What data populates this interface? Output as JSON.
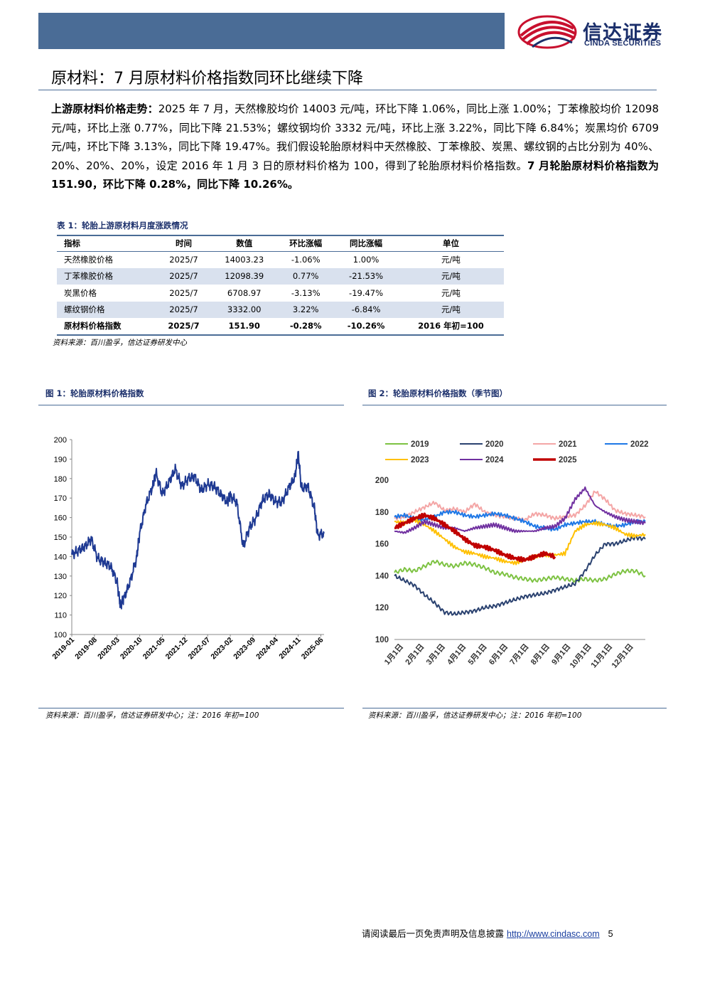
{
  "header": {
    "logo_cn": "信达证券",
    "logo_en": "CINDA SECURITIES",
    "colors": {
      "bar": "#4a6c96",
      "logo_red": "#c8102e",
      "logo_navy": "#1b2f6b"
    }
  },
  "section_title": "原材料：7 月原材料价格指数同环比继续下降",
  "paragraph": {
    "lead": "上游原材料价格走势：",
    "body": "2025 年 7 月，天然橡胶均价 14003 元/吨，环比下降 1.06%，同比上涨 1.00%；丁苯橡胶均价 12098 元/吨，环比上涨 0.77%，同比下降 21.53%；螺纹钢均价 3332 元/吨，环比上涨 3.22%，同比下降 6.84%；炭黑均价 6709 元/吨，环比下降 3.13%，同比下降 19.47%。我们假设轮胎原材料中天然橡胶、丁苯橡胶、炭黑、螺纹钢的占比分别为 40%、20%、20%、20%，设定 2016 年 1 月 3 日的原材料价格为 100，得到了轮胎原材料价格指数。",
    "conclusion": "7 月轮胎原材料价格指数为 151.90，环比下降 0.28%，同比下降 10.26%。"
  },
  "table1": {
    "title": "表 1：轮胎上游原材料月度涨跌情况",
    "headers": [
      "指标",
      "时间",
      "数值",
      "环比涨幅",
      "同比涨幅",
      "单位"
    ],
    "rows": [
      [
        "天然橡胶价格",
        "2025/7",
        "14003.23",
        "-1.06%",
        "1.00%",
        "元/吨"
      ],
      [
        "丁苯橡胶价格",
        "2025/7",
        "12098.39",
        "0.77%",
        "-21.53%",
        "元/吨"
      ],
      [
        "炭黑价格",
        "2025/7",
        "6708.97",
        "-3.13%",
        "-19.47%",
        "元/吨"
      ],
      [
        "螺纹钢价格",
        "2025/7",
        "3332.00",
        "3.22%",
        "-6.84%",
        "元/吨"
      ],
      [
        "原材料价格指数",
        "2025/7",
        "151.90",
        "-0.28%",
        "-10.26%",
        "2016 年初=100"
      ]
    ],
    "source": "资料来源：百川盈孚，信达证券研发中心"
  },
  "figure1": {
    "title": "图 1：轮胎原材料价格指数",
    "source": "资料来源：百川盈孚，信达证券研发中心；注：2016 年初=100"
  },
  "figure2": {
    "title": "图 2：轮胎原材料价格指数（季节图）",
    "source": "资料来源：百川盈孚，信达证券研发中心；注：2016 年初=100"
  },
  "chart_data": [
    {
      "type": "line",
      "title": "",
      "xlabel": "",
      "ylabel": "",
      "x_ticks": [
        "2019-01",
        "2019-08",
        "2020-03",
        "2020-10",
        "2021-05",
        "2021-12",
        "2022-07",
        "2023-02",
        "2023-09",
        "2024-04",
        "2024-11",
        "2025-06"
      ],
      "ylim": [
        100,
        200
      ],
      "y_ticks": [
        100,
        110,
        120,
        130,
        140,
        150,
        160,
        170,
        180,
        190,
        200
      ],
      "grid": false,
      "color": "#1f3a93",
      "series": [
        {
          "x": [
            "2019-01",
            "2019-03",
            "2019-05",
            "2019-07",
            "2019-09",
            "2019-11",
            "2020-01",
            "2020-03",
            "2020-04",
            "2020-05",
            "2020-07",
            "2020-09",
            "2020-10",
            "2020-12",
            "2021-02",
            "2021-03",
            "2021-05",
            "2021-07",
            "2021-09",
            "2021-11",
            "2022-01",
            "2022-03",
            "2022-05",
            "2022-07",
            "2022-09",
            "2022-11",
            "2023-01",
            "2023-02",
            "2023-04",
            "2023-06",
            "2023-08",
            "2023-10",
            "2023-12",
            "2024-02",
            "2024-04",
            "2024-06",
            "2024-08",
            "2024-10",
            "2024-11",
            "2024-12",
            "2025-02",
            "2025-04",
            "2025-05",
            "2025-07"
          ],
          "values": [
            141,
            143,
            145,
            149,
            139,
            137,
            135,
            127,
            115,
            118,
            127,
            139,
            152,
            167,
            176,
            183,
            172,
            178,
            185,
            176,
            180,
            181,
            174,
            177,
            176,
            172,
            168,
            171,
            168,
            145,
            155,
            160,
            169,
            172,
            168,
            168,
            175,
            181,
            193,
            175,
            176,
            165,
            151,
            151.9
          ]
        }
      ]
    },
    {
      "type": "line",
      "title": "",
      "xlabel": "",
      "ylabel": "",
      "x_ticks": [
        "1月1日",
        "2月1日",
        "3月1日",
        "4月1日",
        "5月1日",
        "6月1日",
        "7月1日",
        "8月1日",
        "9月1日",
        "10月1日",
        "11月1日",
        "12月1日"
      ],
      "ylim": [
        100,
        200
      ],
      "y_ticks": [
        100,
        120,
        140,
        160,
        180,
        200
      ],
      "grid": false,
      "legend_position": "top",
      "series": [
        {
          "name": "2019",
          "color": "#7dc242",
          "values": [
            142,
            144,
            143,
            146,
            149,
            147,
            146,
            148,
            147,
            145,
            142,
            141,
            139,
            138,
            137,
            138,
            139,
            138,
            137,
            138,
            137,
            138,
            141,
            143,
            143,
            140
          ]
        },
        {
          "name": "2020",
          "color": "#2b4270",
          "values": [
            140,
            137,
            134,
            128,
            123,
            117,
            116,
            117,
            118,
            120,
            121,
            123,
            125,
            127,
            128,
            129,
            131,
            133,
            135,
            143,
            153,
            160,
            160,
            162,
            164,
            163
          ]
        },
        {
          "name": "2021",
          "color": "#f4a6a6",
          "values": [
            176,
            177,
            180,
            183,
            186,
            181,
            182,
            180,
            185,
            180,
            178,
            177,
            176,
            175,
            179,
            178,
            176,
            177,
            178,
            184,
            193,
            188,
            181,
            179,
            178,
            177
          ]
        },
        {
          "name": "2022",
          "color": "#1e78e6",
          "values": [
            177,
            178,
            176,
            175,
            177,
            180,
            180,
            178,
            177,
            178,
            179,
            178,
            176,
            174,
            171,
            170,
            169,
            172,
            173,
            174,
            174,
            172,
            171,
            172,
            174,
            174
          ]
        },
        {
          "name": "2023",
          "color": "#ffc000",
          "values": [
            174,
            173,
            175,
            172,
            168,
            163,
            158,
            155,
            154,
            152,
            151,
            149,
            148,
            150,
            152,
            153,
            153,
            154,
            168,
            172,
            173,
            172,
            170,
            166,
            165,
            166
          ]
        },
        {
          "name": "2024",
          "color": "#7030a0",
          "values": [
            168,
            167,
            170,
            174,
            172,
            170,
            170,
            168,
            170,
            171,
            172,
            170,
            168,
            168,
            168,
            170,
            171,
            176,
            188,
            195,
            184,
            180,
            177,
            175,
            174,
            173
          ]
        },
        {
          "name": "2025",
          "color": "#c00000",
          "values": [
            170,
            173,
            176,
            178,
            176,
            172,
            168,
            163,
            159,
            158,
            156,
            153,
            151,
            150,
            152,
            154,
            152
          ]
        }
      ]
    }
  ],
  "footer": {
    "disclaimer": "请阅读最后一页免责声明及信息披露",
    "link": "http://www.cindasc.com",
    "page": "5"
  }
}
